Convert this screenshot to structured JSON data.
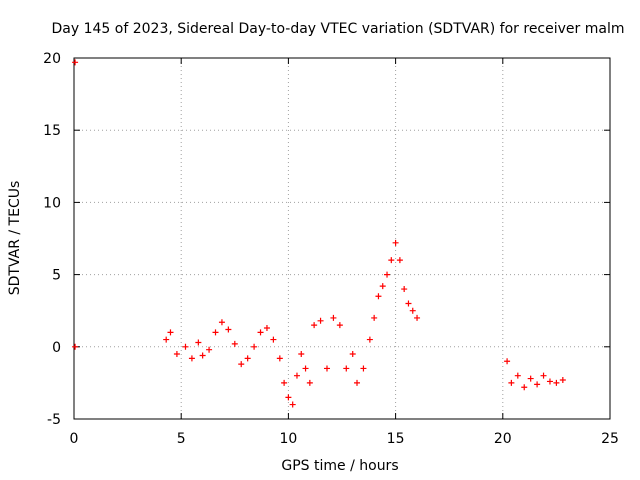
{
  "chart_data": {
    "type": "scatter",
    "title": "Day 145 of 2023, Sidereal Day-to-day VTEC variation (SDTVAR) for receiver malm",
    "xlabel": "GPS time / hours",
    "ylabel": "SDTVAR / TECUs",
    "xlim": [
      0,
      25
    ],
    "ylim": [
      -5,
      20
    ],
    "xticks": [
      0,
      5,
      10,
      15,
      20,
      25
    ],
    "yticks": [
      -5,
      0,
      5,
      10,
      15,
      20
    ],
    "xtick_labels": [
      "0",
      "5",
      "10",
      "15",
      "20",
      "25"
    ],
    "ytick_labels": [
      "-5",
      "0",
      "5",
      "10",
      "15",
      "20"
    ],
    "grid": true,
    "marker": "plus",
    "series": [
      {
        "name": "SDTVAR",
        "color": "#ff0000",
        "x": [
          0.05,
          0.05,
          4.3,
          4.5,
          4.8,
          5.2,
          5.5,
          5.8,
          6.0,
          6.3,
          6.6,
          6.9,
          7.2,
          7.5,
          7.8,
          8.1,
          8.4,
          8.7,
          9.0,
          9.3,
          9.6,
          9.8,
          10.0,
          10.2,
          10.4,
          10.6,
          10.8,
          11.0,
          11.2,
          11.5,
          11.8,
          12.1,
          12.4,
          12.7,
          13.0,
          13.2,
          13.5,
          13.8,
          14.0,
          14.2,
          14.4,
          14.6,
          14.8,
          15.0,
          15.2,
          15.4,
          15.6,
          15.8,
          16.0,
          20.2,
          20.4,
          20.7,
          21.0,
          21.3,
          21.6,
          21.9,
          22.2,
          22.5,
          22.8
        ],
        "y": [
          19.7,
          0.0,
          0.5,
          1.0,
          -0.5,
          0.0,
          -0.8,
          0.3,
          -0.6,
          -0.2,
          1.0,
          1.7,
          1.2,
          0.2,
          -1.2,
          -0.8,
          0.0,
          1.0,
          1.3,
          0.5,
          -0.8,
          -2.5,
          -3.5,
          -4.0,
          -2.0,
          -0.5,
          -1.5,
          -2.5,
          1.5,
          1.8,
          -1.5,
          2.0,
          1.5,
          -1.5,
          -0.5,
          -2.5,
          -1.5,
          0.5,
          2.0,
          3.5,
          4.2,
          5.0,
          6.0,
          7.2,
          6.0,
          4.0,
          3.0,
          2.5,
          2.0,
          -1.0,
          -2.5,
          -2.0,
          -2.8,
          -2.2,
          -2.6,
          -2.0,
          -2.4,
          -2.5,
          -2.3
        ]
      }
    ]
  }
}
